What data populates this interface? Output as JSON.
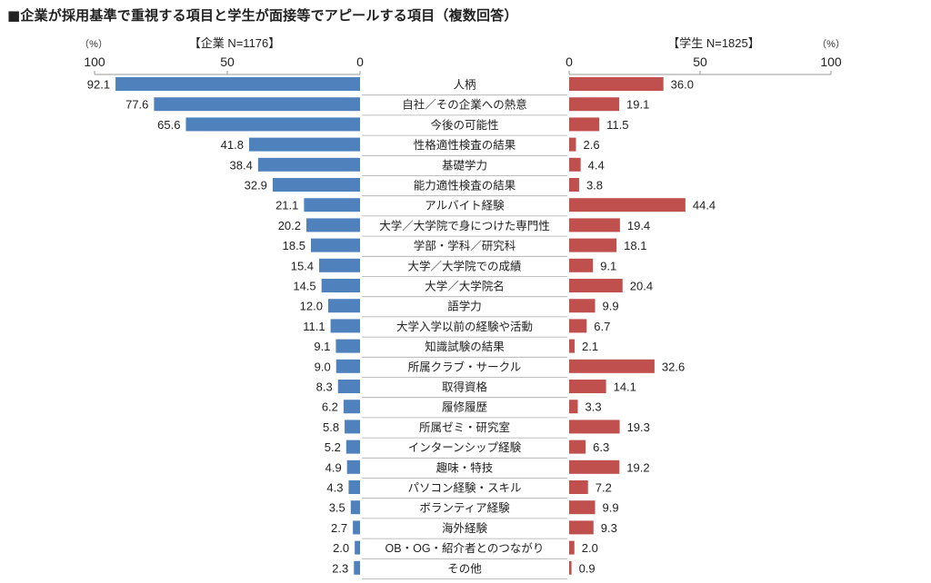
{
  "chart_data": {
    "type": "bar",
    "title": "■企業が採用基準で重視する項目と学生が面接等でアピールする項目（複数回答）",
    "unit_label": "（%）",
    "orientation": "horizontal-butterfly",
    "xlim": [
      0,
      100
    ],
    "ticks": [
      "0",
      "50",
      "100"
    ],
    "grid": false,
    "colors": {
      "company": "#4f81bd",
      "student": "#c0504d"
    },
    "categories": [
      "人柄",
      "自社／その企業への熱意",
      "今後の可能性",
      "性格適性検査の結果",
      "基礎学力",
      "能力適性検査の結果",
      "アルバイト経験",
      "大学／大学院で身につけた専門性",
      "学部・学科／研究科",
      "大学／大学院での成績",
      "大学／大学院名",
      "語学力",
      "大学入学以前の経験や活動",
      "知識試験の結果",
      "所属クラブ・サークル",
      "取得資格",
      "履修履歴",
      "所属ゼミ・研究室",
      "インターンシップ経験",
      "趣味・特技",
      "パソコン経験・スキル",
      "ボランティア経験",
      "海外経験",
      "OB・OG・紹介者とのつながり",
      "その他"
    ],
    "series": [
      {
        "name": "【企業 N=1176】",
        "side": "left",
        "values": [
          92.1,
          77.6,
          65.6,
          41.8,
          38.4,
          32.9,
          21.1,
          20.2,
          18.5,
          15.4,
          14.5,
          12.0,
          11.1,
          9.1,
          9.0,
          8.3,
          6.2,
          5.8,
          5.2,
          4.9,
          4.3,
          3.5,
          2.7,
          2.0,
          2.3
        ]
      },
      {
        "name": "【学生 N=1825】",
        "side": "right",
        "values": [
          36.0,
          19.1,
          11.5,
          2.6,
          4.4,
          3.8,
          44.4,
          19.4,
          18.1,
          9.1,
          20.4,
          9.9,
          6.7,
          2.1,
          32.6,
          14.1,
          3.3,
          19.3,
          6.3,
          19.2,
          7.2,
          9.9,
          9.3,
          2.0,
          0.9
        ]
      }
    ]
  }
}
